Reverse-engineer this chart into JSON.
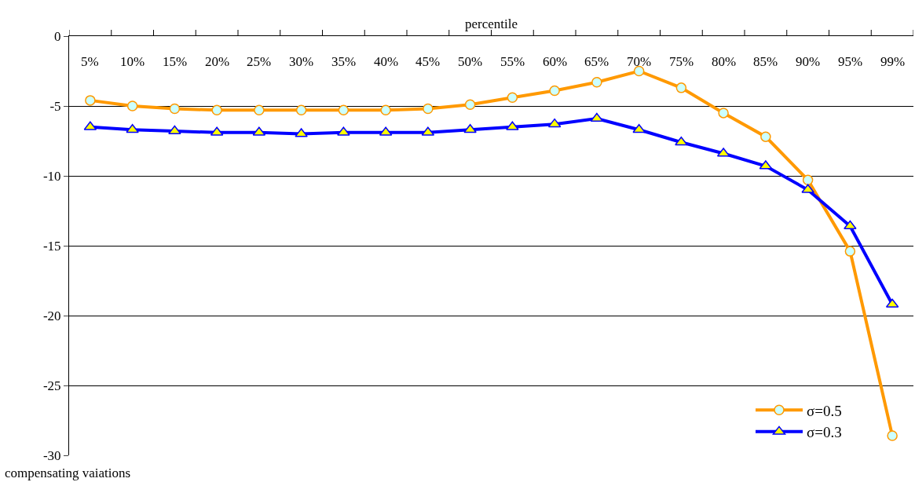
{
  "chart_data": {
    "type": "line",
    "xlabel": "percentile",
    "ylabel": "compensating vaiations",
    "categories": [
      "5%",
      "10%",
      "15%",
      "20%",
      "25%",
      "30%",
      "35%",
      "40%",
      "45%",
      "50%",
      "55%",
      "60%",
      "65%",
      "70%",
      "75%",
      "80%",
      "85%",
      "90%",
      "95%",
      "99%"
    ],
    "series": [
      {
        "name": "σ=0.5",
        "color": "#ff9900",
        "marker": "circle",
        "values": [
          -4.6,
          -5.0,
          -5.2,
          -5.3,
          -5.3,
          -5.3,
          -5.3,
          -5.3,
          -5.2,
          -4.9,
          -4.4,
          -3.9,
          -3.3,
          -2.5,
          -3.7,
          -5.5,
          -7.2,
          -10.3,
          -15.4,
          -28.6
        ]
      },
      {
        "name": "σ=0.3",
        "color": "#0000ff",
        "marker": "triangle",
        "values": [
          -6.5,
          -6.7,
          -6.8,
          -6.9,
          -6.9,
          -7.0,
          -6.9,
          -6.9,
          -6.9,
          -6.7,
          -6.5,
          -6.3,
          -5.9,
          -6.7,
          -7.6,
          -8.4,
          -9.3,
          -11.0,
          -13.6,
          -19.2
        ]
      }
    ],
    "ylim": [
      -30,
      0
    ],
    "yticks": [
      -30,
      -25,
      -20,
      -15,
      -10,
      -5,
      0
    ],
    "grid": "y",
    "legend": "bottom right",
    "line_style": "solid"
  }
}
